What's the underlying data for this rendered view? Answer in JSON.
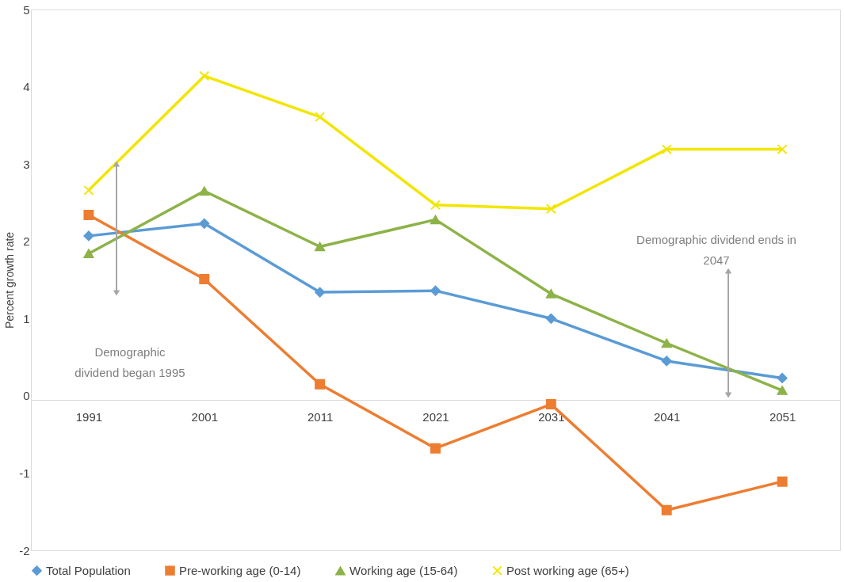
{
  "chart_data": {
    "type": "line",
    "ylabel": "Percent growth rate",
    "x": [
      1991,
      2001,
      2011,
      2021,
      2031,
      2041,
      2051
    ],
    "xlim": [
      1986,
      2056
    ],
    "xticks": [
      1991,
      2001,
      2011,
      2021,
      2031,
      2041,
      2051
    ],
    "ylim": [
      -2,
      5
    ],
    "yticks": [
      -2,
      -1,
      0,
      1,
      2,
      3,
      4,
      5
    ],
    "grid": false,
    "legend": "bottom",
    "line_style": "solid",
    "series": [
      {
        "name": "Total Population",
        "color": "#5b9bd5",
        "marker": "diamond",
        "values": [
          2.07,
          2.23,
          1.34,
          1.36,
          1.0,
          0.45,
          0.23
        ]
      },
      {
        "name": "Pre-working age (0-14)",
        "color": "#ed7d31",
        "marker": "square",
        "values": [
          2.34,
          1.51,
          0.15,
          -0.68,
          -0.11,
          -1.48,
          -1.11
        ]
      },
      {
        "name": "Working age (15-64)",
        "color": "#8db348",
        "marker": "triangle",
        "values": [
          1.84,
          2.65,
          1.93,
          2.28,
          1.32,
          0.68,
          0.07
        ]
      },
      {
        "name": "Post working age (65+)",
        "color": "#f2e600",
        "marker": "cross",
        "values": [
          2.66,
          4.14,
          3.61,
          2.47,
          2.42,
          3.19,
          3.19
        ]
      }
    ],
    "annotations": [
      "Demographic\ndividend began 1995",
      "Demographic dividend ends in\n2047"
    ]
  }
}
